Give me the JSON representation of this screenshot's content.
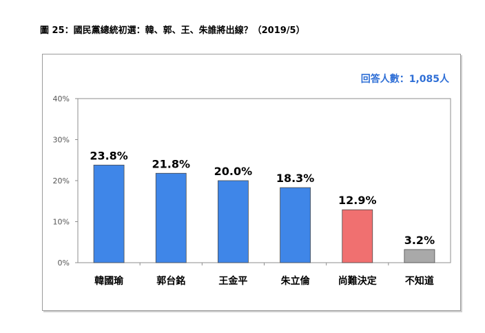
{
  "figure_title": "圖 25：國民黨總統初選：韓、郭、王、朱誰將出線？（2019/5）",
  "respondents": "回答人數：1,085人",
  "colors": {
    "blue": "#3f86e8",
    "red": "#f07070",
    "gray": "#a9a9a9",
    "value_label": "#000000"
  },
  "chart_data": {
    "type": "bar",
    "title": "",
    "xlabel": "",
    "ylabel": "",
    "ylim": [
      0,
      40
    ],
    "yticks": [
      "0%",
      "10%",
      "20%",
      "30%",
      "40%"
    ],
    "grid": false,
    "categories": [
      "韓國瑜",
      "郭台銘",
      "王金平",
      "朱立倫",
      "尚難決定",
      "不知道"
    ],
    "values": [
      23.8,
      21.8,
      20.0,
      18.3,
      12.9,
      3.2
    ],
    "value_labels": [
      "23.8%",
      "21.8%",
      "20.0%",
      "18.3%",
      "12.9%",
      "3.2%"
    ],
    "bar_colors": [
      "blue",
      "blue",
      "blue",
      "blue",
      "red",
      "gray"
    ]
  }
}
